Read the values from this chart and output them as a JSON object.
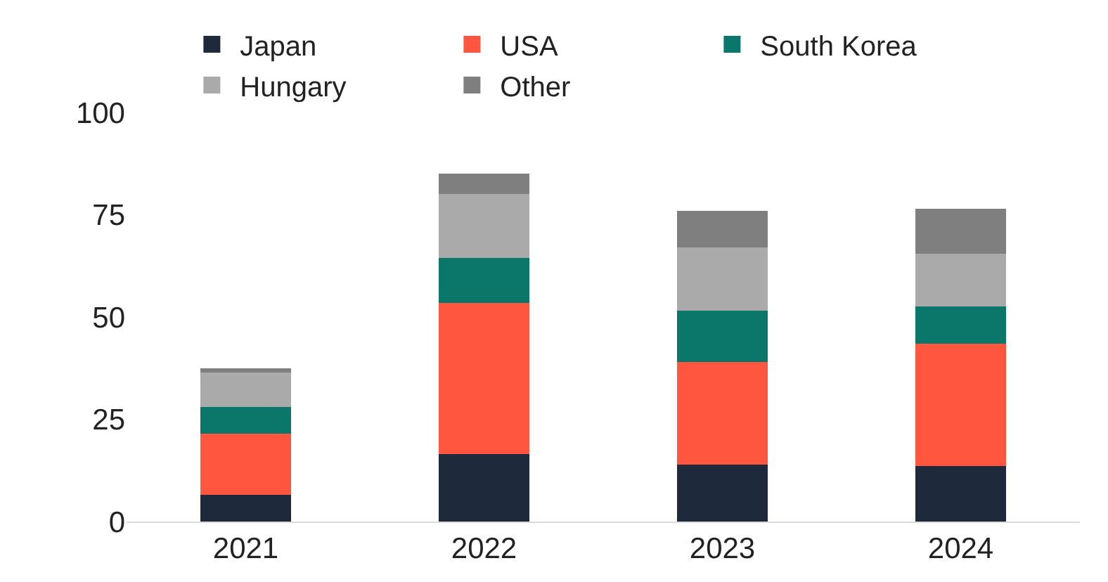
{
  "chart_data": {
    "type": "bar",
    "stacked": true,
    "categories": [
      "2021",
      "2022",
      "2023",
      "2024"
    ],
    "series": [
      {
        "name": "Japan",
        "color": "#1e293b",
        "values": [
          6.5,
          16.5,
          14,
          13.5
        ]
      },
      {
        "name": "USA",
        "color": "#ff5640",
        "values": [
          15,
          37,
          25,
          30
        ]
      },
      {
        "name": "South Korea",
        "color": "#0b776b",
        "values": [
          6.5,
          11,
          12.5,
          9
        ]
      },
      {
        "name": "Hungary",
        "color": "#aaaaaa",
        "values": [
          8.5,
          15.5,
          15.5,
          13
        ]
      },
      {
        "name": "Other",
        "color": "#7f7f7f",
        "values": [
          1,
          5,
          9,
          11
        ]
      }
    ],
    "ylim": [
      0,
      100
    ],
    "yticks": [
      0,
      25,
      50,
      75,
      100
    ],
    "legend": "top"
  }
}
